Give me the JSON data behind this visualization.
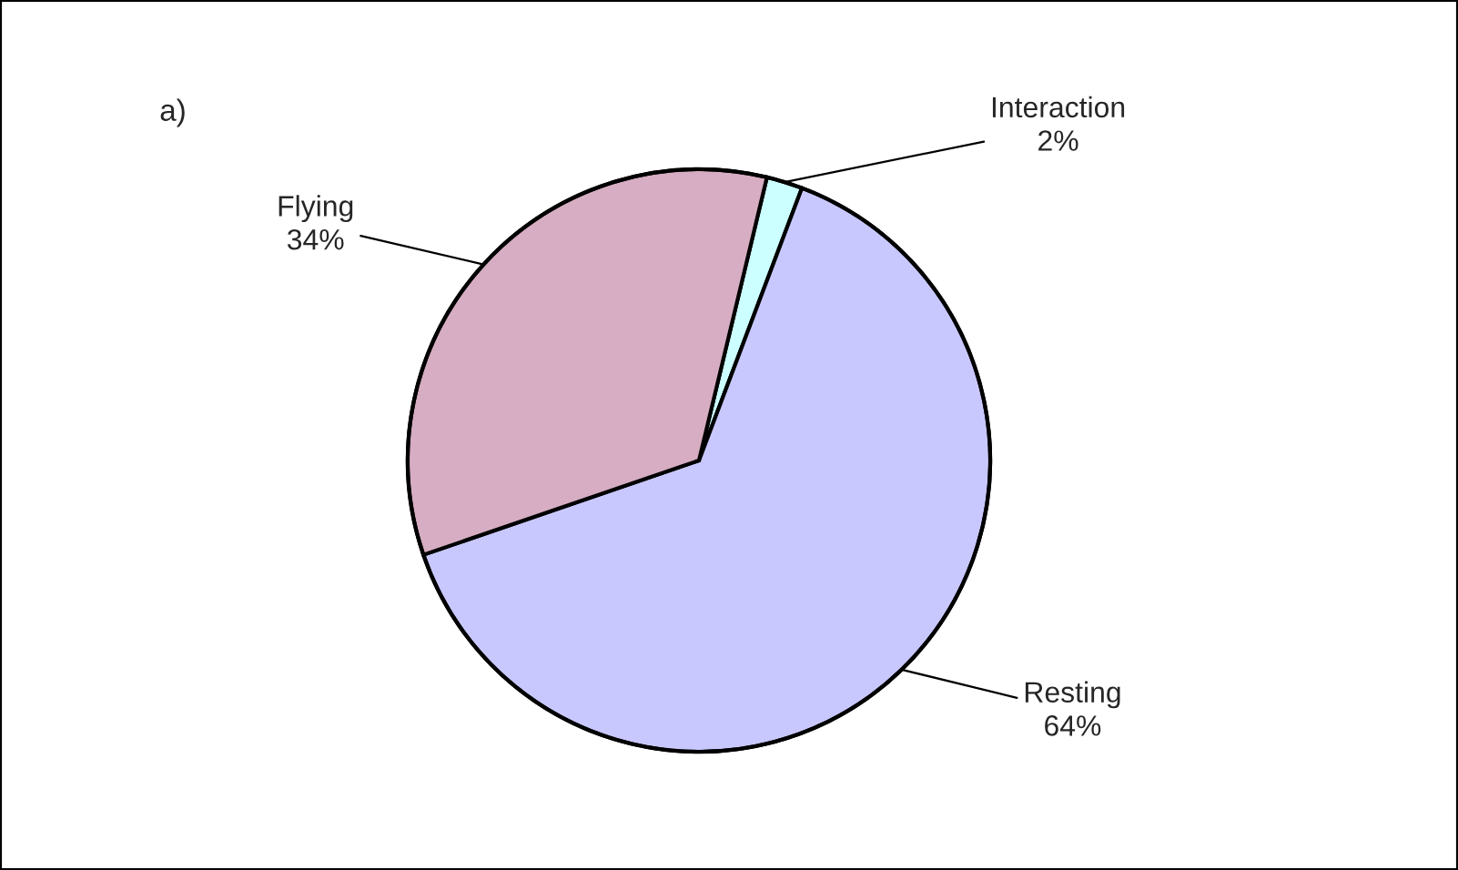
{
  "chart_data": {
    "type": "pie",
    "categories": [
      "Interaction",
      "Resting",
      "Flying"
    ],
    "values": [
      2,
      64,
      34
    ],
    "value_labels": [
      "2%",
      "64%",
      "34%"
    ],
    "colors": [
      "#ccffff",
      "#c8c8ff",
      "#d6adc2"
    ],
    "annotations": [
      "a)"
    ],
    "legend": false
  }
}
